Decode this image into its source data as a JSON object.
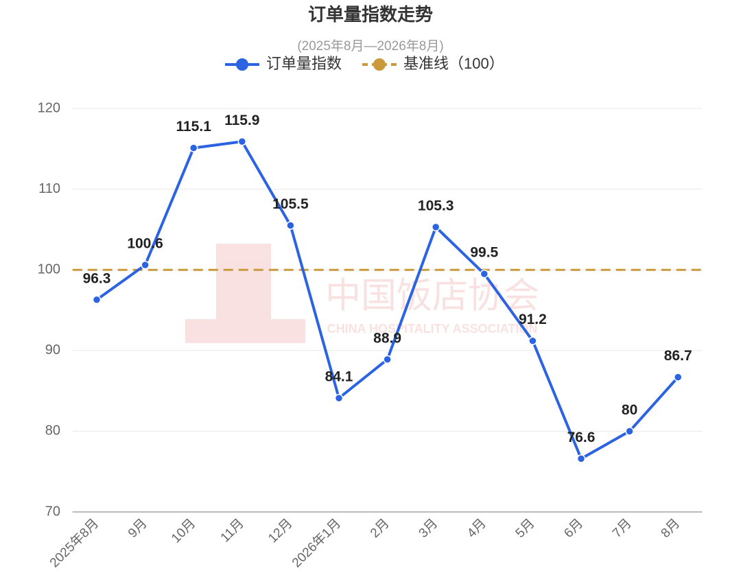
{
  "chart_data": {
    "type": "line",
    "title": "订单量指数走势",
    "subtitle": "(2025年8月—2026年8月)",
    "categories": [
      "2025年8月",
      "9月",
      "10月",
      "11月",
      "12月",
      "2026年1月",
      "2月",
      "3月",
      "4月",
      "5月",
      "6月",
      "7月",
      "8月"
    ],
    "series": [
      {
        "name": "订单量指数",
        "color": "#2b63e3",
        "values": [
          96.3,
          100.6,
          115.1,
          115.9,
          105.5,
          84.1,
          88.9,
          105.3,
          99.5,
          91.2,
          76.6,
          80,
          86.7
        ]
      }
    ],
    "baseline": {
      "name": "基准线（100）",
      "value": 100,
      "color": "#c9993c"
    },
    "ylim": [
      70,
      120
    ],
    "yticks": [
      70,
      80,
      90,
      100,
      110,
      120
    ],
    "grid": true,
    "watermark": {
      "cn": "中国饭店协会",
      "en": "CHINA HOSPITALITY ASSOCIATION"
    }
  }
}
